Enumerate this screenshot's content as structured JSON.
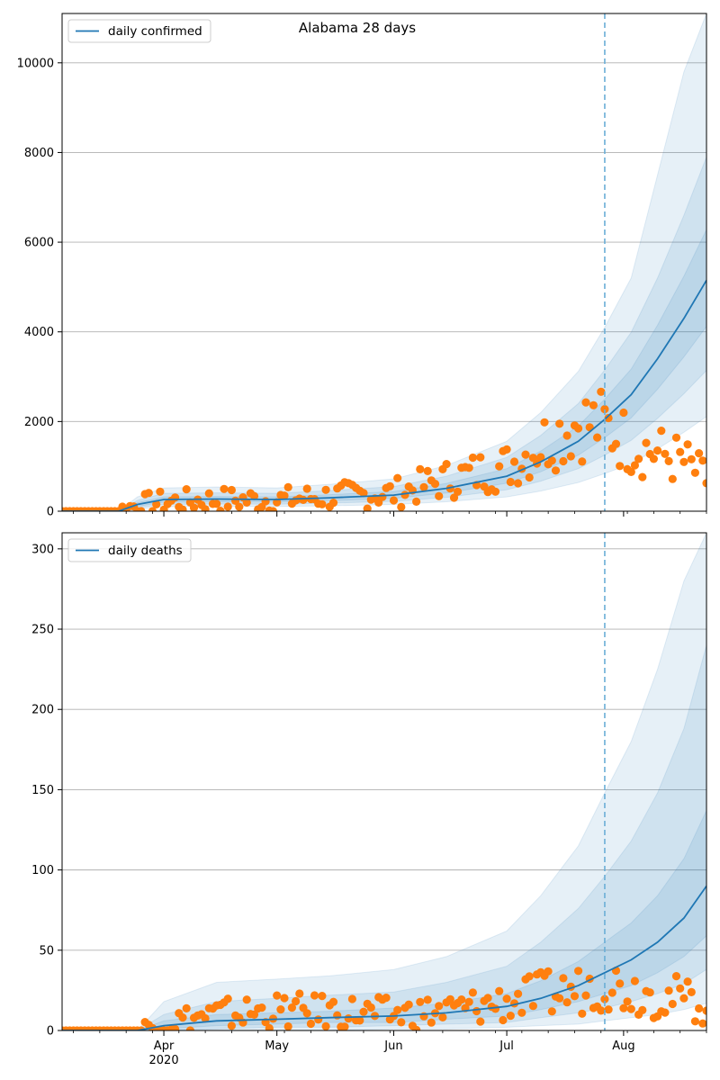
{
  "title": "Alabama 28 days",
  "colors": {
    "forecast_line": "#1f77b4",
    "observed_points": "#ff7f0e",
    "band": "#1f77b4",
    "cutoff_line": "#6baed6",
    "grid": "#b0b0b0"
  },
  "x_axis": {
    "month_ticks": [
      {
        "label": "Apr",
        "date": "2020-04-01"
      },
      {
        "label": "May",
        "date": "2020-05-01"
      },
      {
        "label": "Jun",
        "date": "2020-06-01"
      },
      {
        "label": "Jul",
        "date": "2020-07-01"
      },
      {
        "label": "Aug",
        "date": "2020-08-01"
      }
    ],
    "year_label": "2020",
    "range": [
      "2020-03-05",
      "2020-08-23"
    ],
    "forecast_cutoff": "2020-07-27"
  },
  "chart_data": [
    {
      "type": "line",
      "title": "Alabama 28 days",
      "legend": "daily confirmed",
      "legend_position": "top-left",
      "grid": true,
      "ylim": [
        0,
        11100
      ],
      "y_ticks": [
        0,
        2000,
        4000,
        6000,
        8000,
        10000
      ],
      "forecast_median": [
        {
          "x": "2020-03-05",
          "y": 0
        },
        {
          "x": "2020-03-20",
          "y": 0
        },
        {
          "x": "2020-03-25",
          "y": 150
        },
        {
          "x": "2020-04-01",
          "y": 260
        },
        {
          "x": "2020-04-15",
          "y": 270
        },
        {
          "x": "2020-05-01",
          "y": 260
        },
        {
          "x": "2020-05-15",
          "y": 300
        },
        {
          "x": "2020-06-01",
          "y": 360
        },
        {
          "x": "2020-06-15",
          "y": 510
        },
        {
          "x": "2020-07-01",
          "y": 780
        },
        {
          "x": "2020-07-10",
          "y": 1100
        },
        {
          "x": "2020-07-20",
          "y": 1560
        },
        {
          "x": "2020-07-27",
          "y": 2050
        },
        {
          "x": "2020-08-03",
          "y": 2600
        },
        {
          "x": "2020-08-10",
          "y": 3400
        },
        {
          "x": "2020-08-17",
          "y": 4300
        },
        {
          "x": "2020-08-23",
          "y": 5150
        }
      ],
      "bands": [
        {
          "name": "50%",
          "low": [
            0,
            0,
            110,
            200,
            210,
            205,
            235,
            285,
            405,
            625,
            880,
            1250,
            1640,
            2080,
            2720,
            3440,
            4120
          ],
          "high": [
            0,
            0,
            190,
            320,
            330,
            320,
            370,
            440,
            620,
            950,
            1340,
            1900,
            2500,
            3170,
            4150,
            5240,
            6280
          ]
        },
        {
          "name": "80%",
          "low": [
            0,
            0,
            80,
            150,
            160,
            155,
            180,
            220,
            310,
            480,
            670,
            950,
            1250,
            1580,
            2070,
            2620,
            3140
          ],
          "high": [
            0,
            0,
            240,
            400,
            410,
            400,
            460,
            550,
            780,
            1200,
            1690,
            2400,
            3150,
            3990,
            5200,
            6600,
            7900
          ]
        },
        {
          "name": "95%",
          "low": [
            0,
            0,
            50,
            100,
            110,
            105,
            120,
            150,
            210,
            320,
            450,
            640,
            840,
            1060,
            1390,
            1760,
            2110
          ],
          "high": [
            0,
            0,
            320,
            520,
            540,
            520,
            600,
            720,
            1020,
            1560,
            2200,
            3120,
            4100,
            5200,
            7500,
            9800,
            11100
          ]
        }
      ],
      "observed": [
        {
          "x": "2020-03-05",
          "y": 0
        },
        {
          "x": "2020-03-20",
          "y": 0
        },
        {
          "x": "2020-03-25",
          "y": 140
        },
        {
          "x": "2020-04-01",
          "y": 200
        },
        {
          "x": "2020-04-15",
          "y": 250
        },
        {
          "x": "2020-05-01",
          "y": 250
        },
        {
          "x": "2020-05-15",
          "y": 330
        },
        {
          "x": "2020-06-01",
          "y": 400
        },
        {
          "x": "2020-06-15",
          "y": 700
        },
        {
          "x": "2020-07-01",
          "y": 1000
        },
        {
          "x": "2020-07-10",
          "y": 1500
        },
        {
          "x": "2020-07-20",
          "y": 2000
        },
        {
          "x": "2020-07-27",
          "y": 1900
        },
        {
          "x": "2020-08-03",
          "y": 1500
        },
        {
          "x": "2020-08-10",
          "y": 1300
        },
        {
          "x": "2020-08-17",
          "y": 1100
        },
        {
          "x": "2020-08-23",
          "y": 700
        }
      ]
    },
    {
      "type": "line",
      "legend": "daily deaths",
      "legend_position": "top-left",
      "grid": true,
      "ylim": [
        0,
        310
      ],
      "y_ticks": [
        0,
        50,
        100,
        150,
        200,
        250,
        300
      ],
      "forecast_median": [
        {
          "x": "2020-03-05",
          "y": 0
        },
        {
          "x": "2020-03-25",
          "y": 0
        },
        {
          "x": "2020-04-01",
          "y": 3
        },
        {
          "x": "2020-04-15",
          "y": 6
        },
        {
          "x": "2020-05-01",
          "y": 7
        },
        {
          "x": "2020-05-15",
          "y": 8
        },
        {
          "x": "2020-06-01",
          "y": 9
        },
        {
          "x": "2020-06-15",
          "y": 11
        },
        {
          "x": "2020-07-01",
          "y": 15
        },
        {
          "x": "2020-07-10",
          "y": 20
        },
        {
          "x": "2020-07-20",
          "y": 28
        },
        {
          "x": "2020-07-27",
          "y": 36
        },
        {
          "x": "2020-08-03",
          "y": 44
        },
        {
          "x": "2020-08-10",
          "y": 55
        },
        {
          "x": "2020-08-17",
          "y": 70
        },
        {
          "x": "2020-08-23",
          "y": 90
        }
      ],
      "bands": [
        {
          "name": "50%",
          "low": [
            0,
            0,
            1,
            3,
            4,
            5,
            5,
            7,
            9,
            13,
            18,
            23,
            28,
            36,
            46,
            59
          ],
          "high": [
            0,
            0,
            6,
            10,
            11,
            12,
            14,
            17,
            23,
            31,
            43,
            55,
            67,
            84,
            107,
            137
          ]
        },
        {
          "name": "80%",
          "low": [
            0,
            0,
            0,
            1,
            2,
            2,
            3,
            4,
            5,
            8,
            11,
            14,
            18,
            23,
            29,
            38
          ],
          "high": [
            0,
            0,
            10,
            18,
            20,
            22,
            24,
            30,
            40,
            55,
            76,
            96,
            118,
            148,
            188,
            240
          ]
        },
        {
          "name": "95%",
          "low": [
            0,
            0,
            0,
            0,
            0,
            0,
            1,
            1,
            2,
            3,
            4,
            6,
            8,
            10,
            13,
            17
          ],
          "high": [
            0,
            0,
            18,
            30,
            32,
            34,
            38,
            46,
            62,
            84,
            115,
            148,
            180,
            225,
            280,
            310
          ]
        }
      ],
      "observed": [
        {
          "x": "2020-03-05",
          "y": 0
        },
        {
          "x": "2020-03-25",
          "y": 0
        },
        {
          "x": "2020-04-01",
          "y": 5
        },
        {
          "x": "2020-04-15",
          "y": 10
        },
        {
          "x": "2020-05-01",
          "y": 12
        },
        {
          "x": "2020-05-15",
          "y": 12
        },
        {
          "x": "2020-06-01",
          "y": 10
        },
        {
          "x": "2020-06-15",
          "y": 12
        },
        {
          "x": "2020-07-01",
          "y": 18
        },
        {
          "x": "2020-07-10",
          "y": 22
        },
        {
          "x": "2020-07-20",
          "y": 25
        },
        {
          "x": "2020-07-27",
          "y": 30
        },
        {
          "x": "2020-08-03",
          "y": 25
        },
        {
          "x": "2020-08-10",
          "y": 22
        },
        {
          "x": "2020-08-17",
          "y": 20
        },
        {
          "x": "2020-08-23",
          "y": 15
        }
      ]
    }
  ]
}
